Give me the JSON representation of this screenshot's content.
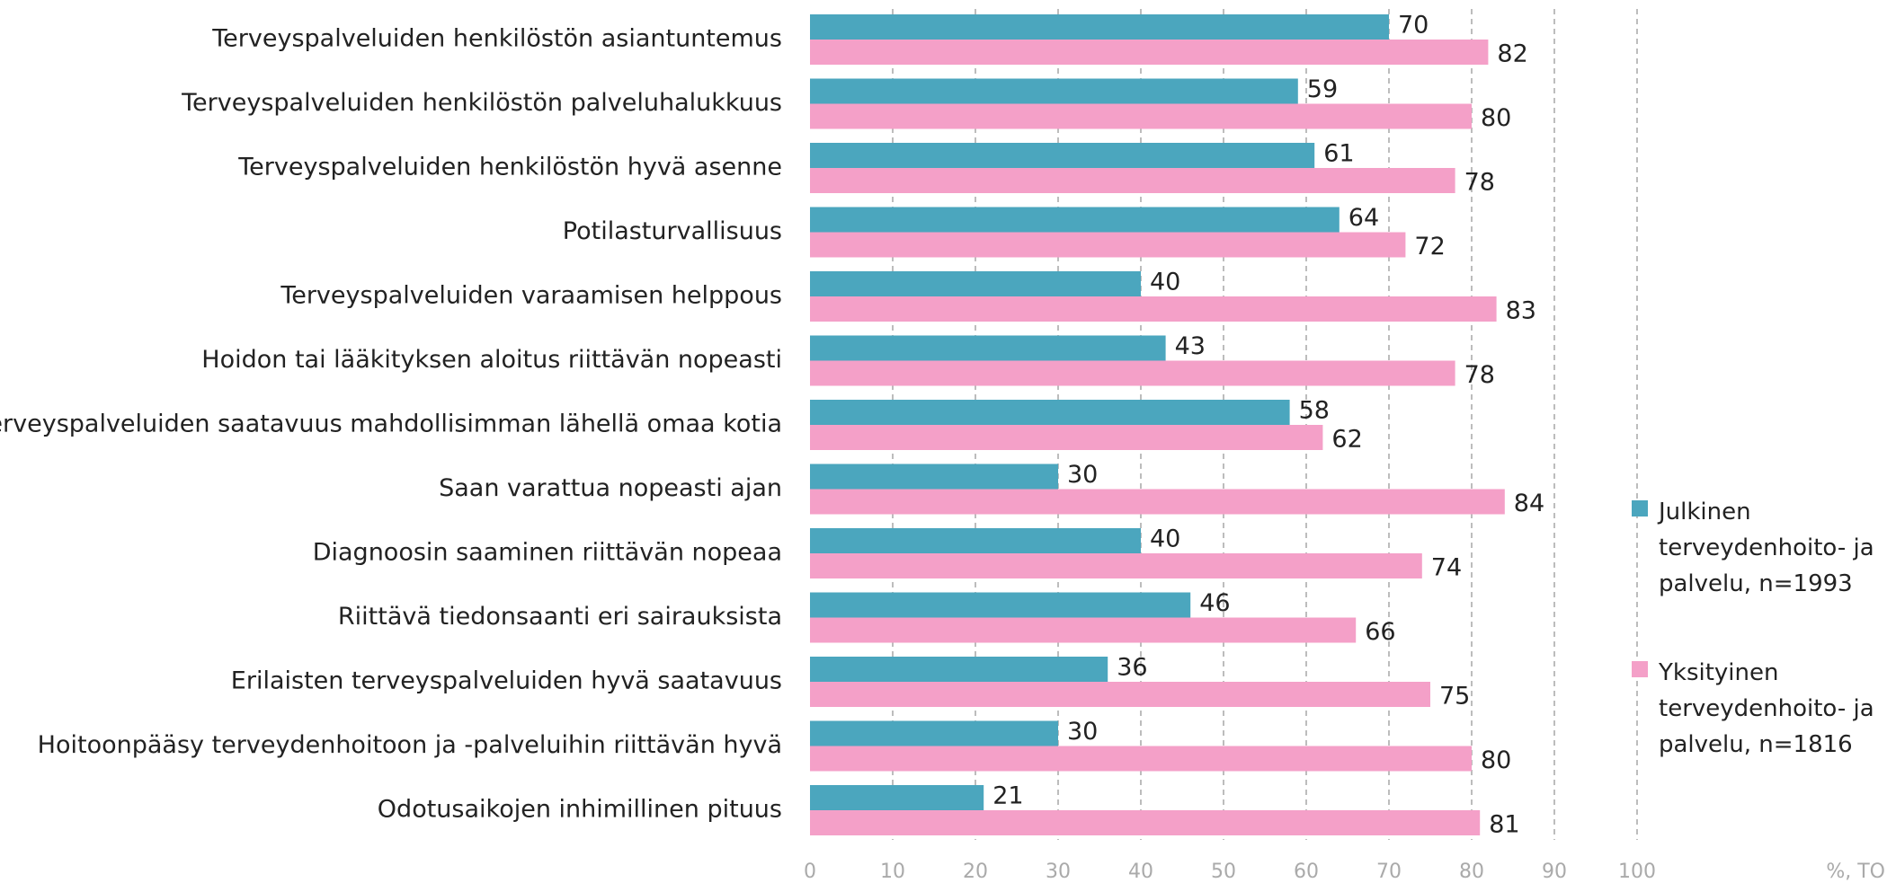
{
  "chart_data": {
    "type": "barh",
    "categories": [
      "Terveyspalveluiden henkilöstön asiantuntemus",
      "Terveyspalveluiden henkilöstön palveluhalukkuus",
      "Terveyspalveluiden henkilöstön hyvä asenne",
      "Potilasturvallisuus",
      "Terveyspalveluiden varaamisen helppous",
      "Hoidon tai lääkityksen aloitus riittävän nopeasti",
      "Terveyspalveluiden saatavuus mahdollisimman lähellä omaa kotia",
      "Saan varattua nopeasti ajan",
      "Diagnoosin saaminen riittävän nopeaa",
      "Riittävä tiedonsaanti eri sairauksista",
      "Erilaisten terveyspalveluiden hyvä saatavuus",
      "Hoitoonpääsy terveydenhoitoon ja -palveluihin riittävän hyvä",
      "Odotusaikojen inhimillinen pituus"
    ],
    "series": [
      {
        "name": "Julkinen terveydenhoito- ja palvelu, n=1993",
        "color": "#4ba6be",
        "values": [
          70,
          59,
          61,
          64,
          40,
          43,
          58,
          30,
          40,
          46,
          36,
          30,
          21
        ]
      },
      {
        "name": "Yksityinen terveydenhoito- ja palvelu, n=1816",
        "color": "#f4a0c8",
        "values": [
          82,
          80,
          78,
          72,
          83,
          78,
          62,
          84,
          74,
          66,
          75,
          80,
          81
        ]
      }
    ],
    "xlim": [
      0,
      100
    ],
    "xticks": [
      0,
      10,
      20,
      30,
      40,
      50,
      60,
      70,
      80,
      90,
      100
    ],
    "xlabel": "%, TO",
    "grid": true
  }
}
